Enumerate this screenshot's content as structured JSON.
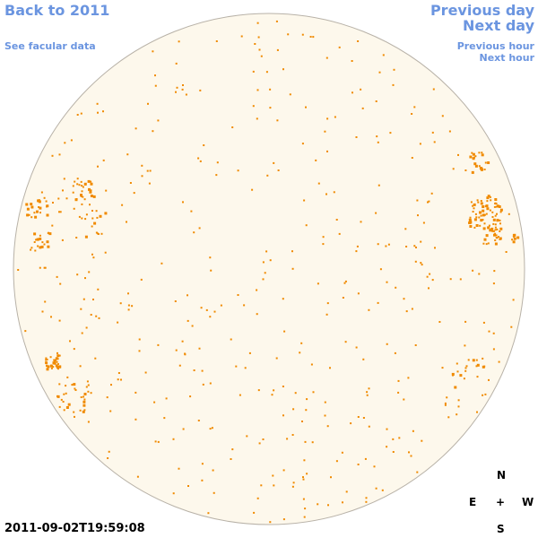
{
  "nav": {
    "back_label": "Back to 2011",
    "facular_label": "See facular data",
    "prev_day_label": "Previous day",
    "next_day_label": "Next day",
    "prev_hour_label": "Previous hour",
    "next_hour_label": "Next hour"
  },
  "compass": {
    "north": "N",
    "east": "E",
    "center": "+",
    "west": "W",
    "south": "S"
  },
  "timestamp": "2011-09-02T19:59:08",
  "colors": {
    "link": "#6b95e0",
    "disk_fill": "#fdf8ec",
    "disk_edge": "#b8b2a8",
    "facula": "#f08a00"
  }
}
